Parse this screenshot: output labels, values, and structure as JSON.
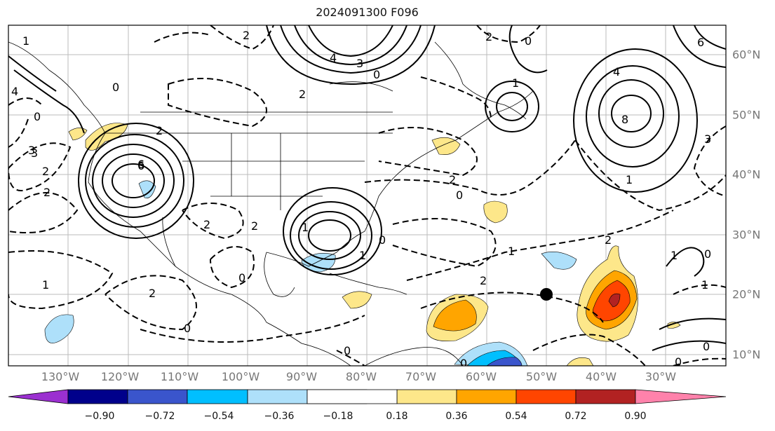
{
  "title": "2024091300 F096",
  "longitude_labels": [
    "130°W",
    "120°W",
    "110°W",
    "100°W",
    "90°W",
    "80°W",
    "70°W",
    "60°W",
    "50°W",
    "40°W",
    "30°W"
  ],
  "latitude_labels": [
    "60°N",
    "50°N",
    "40°N",
    "30°N",
    "20°N",
    "10°N"
  ],
  "colorbar": {
    "ticks": [
      "−0.90",
      "−0.72",
      "−0.54",
      "−0.36",
      "−0.18",
      "0.18",
      "0.36",
      "0.54",
      "0.72",
      "0.90"
    ],
    "colors": [
      "#9b30d0",
      "#00008b",
      "#3a55cc",
      "#00bfff",
      "#aee0fa",
      "#ffffff",
      "#fde78a",
      "#ffa500",
      "#ff4500",
      "#b22222",
      "#ff82ab"
    ]
  },
  "marker": {
    "label": "storm-center",
    "lon": "50°W",
    "lat": "20°N"
  },
  "contour_labels": [
    "1",
    "0",
    "4",
    "2",
    "6",
    "2",
    "3",
    "2",
    "4",
    "3",
    "0",
    "2",
    "1",
    "0",
    "6",
    "4",
    "8",
    "2",
    "1",
    "0",
    "1",
    "3",
    "0",
    "1",
    "0",
    "3",
    "2",
    "6",
    "2",
    "2",
    "0",
    "2",
    "0",
    "1",
    "2",
    "0",
    "1",
    "1",
    "2",
    "2",
    "0",
    "1",
    "0",
    "0",
    "0"
  ]
}
